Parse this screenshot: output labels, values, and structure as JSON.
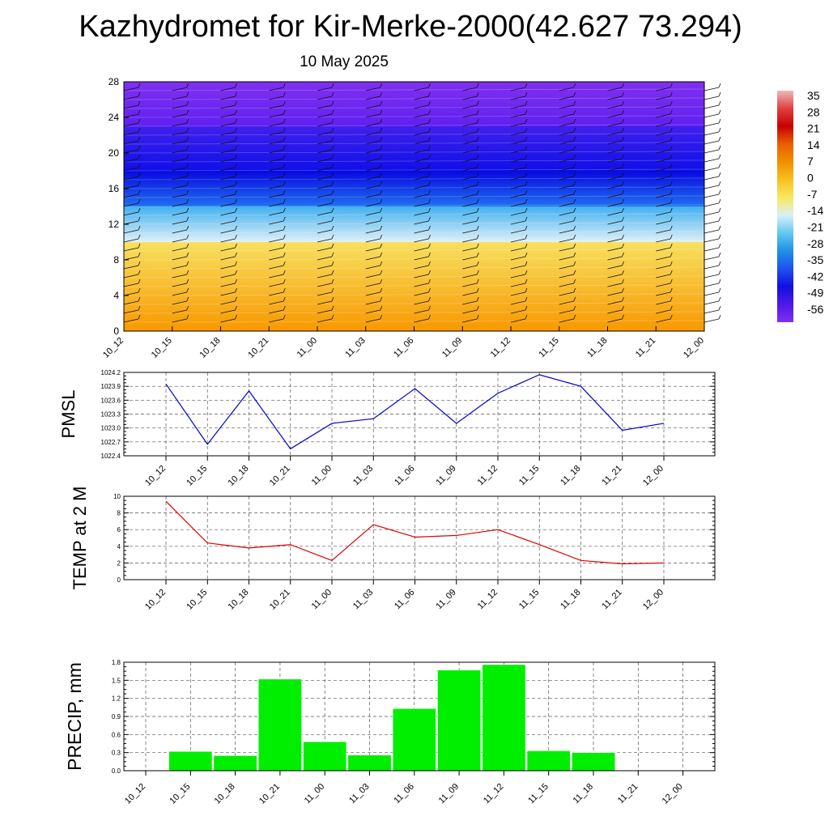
{
  "title": "Kazhydromet for Kir-Merke-2000(42.627 73.294)",
  "subtitle": "10 May 2025",
  "time_labels": [
    "10_12",
    "10_15",
    "10_18",
    "10_21",
    "11_00",
    "11_03",
    "11_06",
    "11_09",
    "11_12",
    "11_15",
    "11_18",
    "11_21",
    "12_00"
  ],
  "colorbar": {
    "labels": [
      "35",
      "28",
      "21",
      "14",
      "7",
      "0",
      "-7",
      "-14",
      "-21",
      "-28",
      "-35",
      "-42",
      "-49",
      "-56"
    ],
    "colors": [
      "#f0b8b8",
      "#e04040",
      "#c80000",
      "#e86000",
      "#f09000",
      "#f8c020",
      "#f8e860",
      "#d8f0f8",
      "#60c8f0",
      "#2090e8",
      "#2050f0",
      "#1010e0",
      "#5018e8",
      "#8030f0"
    ]
  },
  "chart_data": [
    {
      "type": "heatmap",
      "title": "",
      "y_ticks": [
        "0",
        "4",
        "8",
        "12",
        "16",
        "20",
        "24",
        "28"
      ],
      "ylim": [
        0,
        28
      ],
      "x": [
        "10_12",
        "10_15",
        "10_18",
        "10_21",
        "11_00",
        "11_03",
        "11_06",
        "11_09",
        "11_12",
        "11_15",
        "11_18",
        "11_21",
        "12_00"
      ],
      "bands": [
        {
          "from": 0,
          "to": 10,
          "color_range": [
            "#f89800",
            "#f8e060"
          ]
        },
        {
          "from": 10,
          "to": 14,
          "color_range": [
            "#e0f0f8",
            "#40b0f0"
          ]
        },
        {
          "from": 14,
          "to": 18,
          "color_range": [
            "#2070f0",
            "#0808e0"
          ]
        },
        {
          "from": 18,
          "to": 23,
          "color_range": [
            "#1010e8",
            "#4020ec"
          ]
        },
        {
          "from": 23,
          "to": 28,
          "color_range": [
            "#6020f0",
            "#8030f0"
          ]
        }
      ]
    },
    {
      "type": "line",
      "ylabel": "PMSL",
      "y_ticks": [
        "1022.4",
        "1022.7",
        "1023.0",
        "1023.3",
        "1023.6",
        "1023.9",
        "1024.2"
      ],
      "ylim": [
        1022.4,
        1024.2
      ],
      "x": [
        "10_12",
        "10_15",
        "10_18",
        "10_21",
        "11_00",
        "11_03",
        "11_06",
        "11_09",
        "11_12",
        "11_15",
        "11_18",
        "11_21",
        "12_00"
      ],
      "values": [
        1023.95,
        1022.65,
        1023.8,
        1022.55,
        1023.1,
        1023.2,
        1023.85,
        1023.1,
        1023.75,
        1024.15,
        1023.9,
        1022.95,
        1023.1
      ],
      "color": "#0000cc",
      "grid": true
    },
    {
      "type": "line",
      "ylabel": "TEMP at 2 M",
      "y_ticks": [
        "0",
        "2",
        "4",
        "6",
        "8",
        "10"
      ],
      "ylim": [
        0,
        10
      ],
      "x": [
        "10_12",
        "10_15",
        "10_18",
        "10_21",
        "11_00",
        "11_03",
        "11_06",
        "11_09",
        "11_12",
        "11_15",
        "11_18",
        "11_21",
        "12_00"
      ],
      "values": [
        9.4,
        4.4,
        3.8,
        4.2,
        2.3,
        6.6,
        5.1,
        5.3,
        6.0,
        4.2,
        2.3,
        1.9,
        2.0
      ],
      "color": "#e00000",
      "grid": true
    },
    {
      "type": "bar",
      "ylabel": "PRECIP, mm",
      "y_ticks": [
        "0.0",
        "0.3",
        "0.6",
        "0.9",
        "1.2",
        "1.5",
        "1.8"
      ],
      "ylim": [
        0,
        1.8
      ],
      "categories": [
        "10_12",
        "10_15",
        "10_18",
        "10_21",
        "11_00",
        "11_03",
        "11_06",
        "11_09",
        "11_12",
        "11_15",
        "11_18",
        "11_21",
        "12_00"
      ],
      "values": [
        0,
        0.32,
        0.25,
        1.52,
        0.48,
        0.26,
        1.03,
        1.67,
        1.76,
        0.33,
        0.3,
        0,
        0
      ],
      "color": "#00ee00",
      "grid": true
    }
  ]
}
